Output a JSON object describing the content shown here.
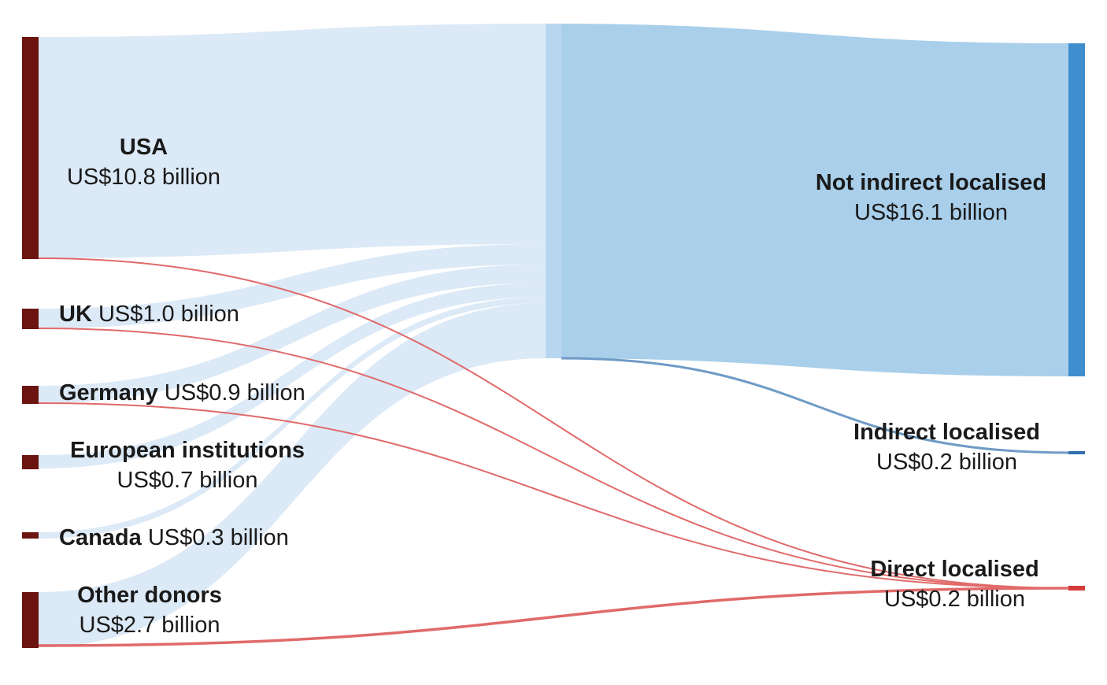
{
  "colors": {
    "source_bar": "#6b1410",
    "flow_not_indirect": "#dce9f6",
    "flow_direct": "#e06a6a",
    "flow_indirect": "#6f9bc6",
    "target_not_indirect": "#a9cfea",
    "target_not_indirect_bar": "#3f8fcf",
    "target_indirect_bar": "#2f6fae",
    "target_direct_bar": "#d63a3a"
  },
  "sources": [
    {
      "id": "usa",
      "name": "USA",
      "value_label": "US$10.8 billion"
    },
    {
      "id": "uk",
      "name": "UK",
      "value_label": "US$1.0 billion"
    },
    {
      "id": "germany",
      "name": "Germany",
      "value_label": "US$0.9 billion"
    },
    {
      "id": "eu",
      "name": "European institutions",
      "value_label": "US$0.7 billion"
    },
    {
      "id": "canada",
      "name": "Canada",
      "value_label": "US$0.3 billion"
    },
    {
      "id": "other",
      "name": "Other donors",
      "value_label": "US$2.7 billion"
    }
  ],
  "targets": [
    {
      "id": "not_indirect",
      "name": "Not indirect localised",
      "value_label": "US$16.1 billion"
    },
    {
      "id": "indirect",
      "name": "Indirect localised",
      "value_label": "US$0.2 billion"
    },
    {
      "id": "direct",
      "name": "Direct localised",
      "value_label": "US$0.2 billion"
    }
  ],
  "links": [
    {
      "source": "usa",
      "target": "not_indirect",
      "value": 10.8
    },
    {
      "source": "uk",
      "target": "not_indirect",
      "value": 1.0
    },
    {
      "source": "germany",
      "target": "not_indirect",
      "value": 0.9
    },
    {
      "source": "eu",
      "target": "not_indirect",
      "value": 0.7
    },
    {
      "source": "canada",
      "target": "not_indirect",
      "value": 0.3
    },
    {
      "source": "other",
      "target": "not_indirect",
      "value": 2.7
    },
    {
      "source": "usa",
      "target": "direct",
      "value": 0.02
    },
    {
      "source": "uk",
      "target": "direct",
      "value": 0.02
    },
    {
      "source": "germany",
      "target": "direct",
      "value": 0.02
    },
    {
      "source": "other",
      "target": "direct",
      "value": 0.1
    },
    {
      "source": "not_indirect",
      "target": "indirect",
      "value": 0.2
    }
  ]
}
